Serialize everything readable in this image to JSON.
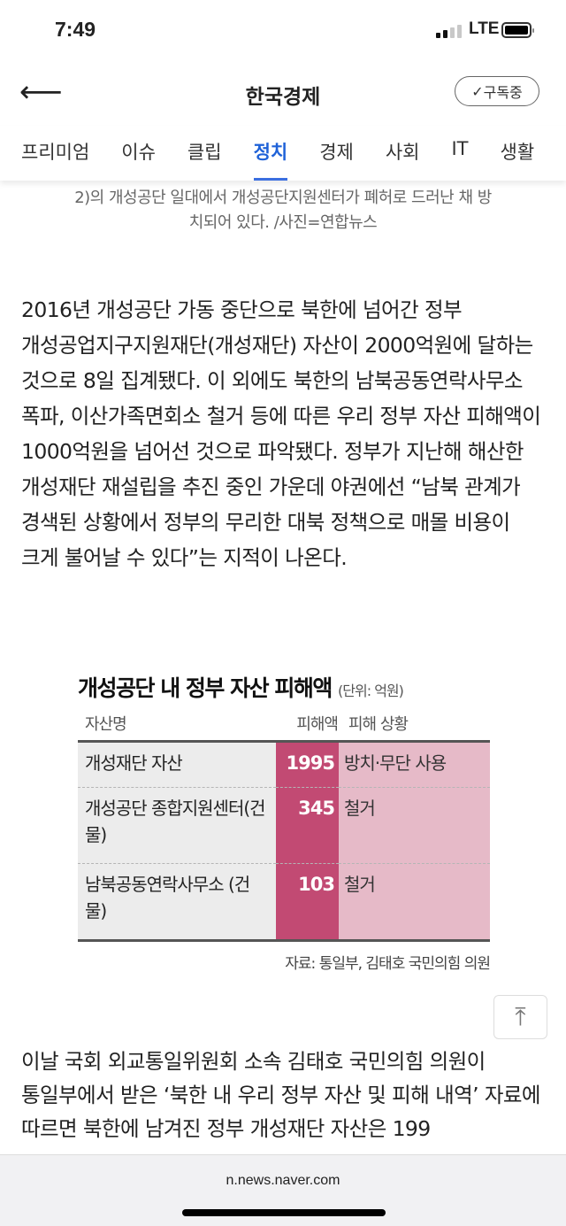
{
  "status": {
    "time": "7:49",
    "network": "LTE",
    "signal_bars": 2,
    "battery_level": 0.9
  },
  "header": {
    "title": "한국경제",
    "subscribe_label": "구독중",
    "back_icon": "arrow-left-icon"
  },
  "tabs": [
    {
      "label": "프리미엄"
    },
    {
      "label": "이슈"
    },
    {
      "label": "클립"
    },
    {
      "label": "정치",
      "active": true
    },
    {
      "label": "경제"
    },
    {
      "label": "사회"
    },
    {
      "label": "IT"
    },
    {
      "label": "생활"
    }
  ],
  "caption": {
    "cut_line": "2)의 개성공단 일대에서 개성공단지원센터가 폐허로 드러난 채 방",
    "line": "치되어 있다. /사진=연합뉴스"
  },
  "article": {
    "p1": "2016년 개성공단 가동 중단으로 북한에 넘어간 정부 개성공업지구지원재단(개성재단) 자산이 2000억원에 달하는 것으로 8일 집계됐다. 이 외에도 북한의 남북공동연락사무소 폭파, 이산가족면회소 철거 등에 따른 우리 정부 자산 피해액이 1000억원을 넘어선 것으로 파악됐다. 정부가 지난해 해산한 개성재단 재설립을 추진 중인 가운데 야권에선 “남북 관계가 경색된 상황에서 정부의 무리한 대북 정책으로 매몰 비용이 크게 불어날 수 있다”는 지적이 나온다.",
    "p2": "이날 국회 외교통일위원회 소속 김태호 국민의힘 의원이 통일부에서 받은 ‘북한 내 우리 정부 자산 및 피해 내역’ 자료에 따르면 북한에 남겨진 정부 개성재단 자산은 199"
  },
  "figure": {
    "title": "개성공단 내 정부 자산 피해액",
    "unit": "(단위: 억원)",
    "headers": [
      "자산명",
      "피해액",
      "피해 상황"
    ],
    "rows": [
      {
        "name": "개성재단 자산",
        "amount": "1995",
        "status": "방치·무단 사용"
      },
      {
        "name": "개성공단 종합지원센터(건물)",
        "amount": "345",
        "status": "철거"
      },
      {
        "name": "남북공동연락사무소 (건물)",
        "amount": "103",
        "status": "철거"
      }
    ],
    "source": "자료: 통일부, 김태호 국민의힘 의원",
    "colors": {
      "amount": "#c24a73",
      "status": "#e6bac8",
      "name": "#ececec"
    }
  },
  "browser": {
    "url": "n.news.naver.com"
  },
  "accent": "#1f62d8"
}
